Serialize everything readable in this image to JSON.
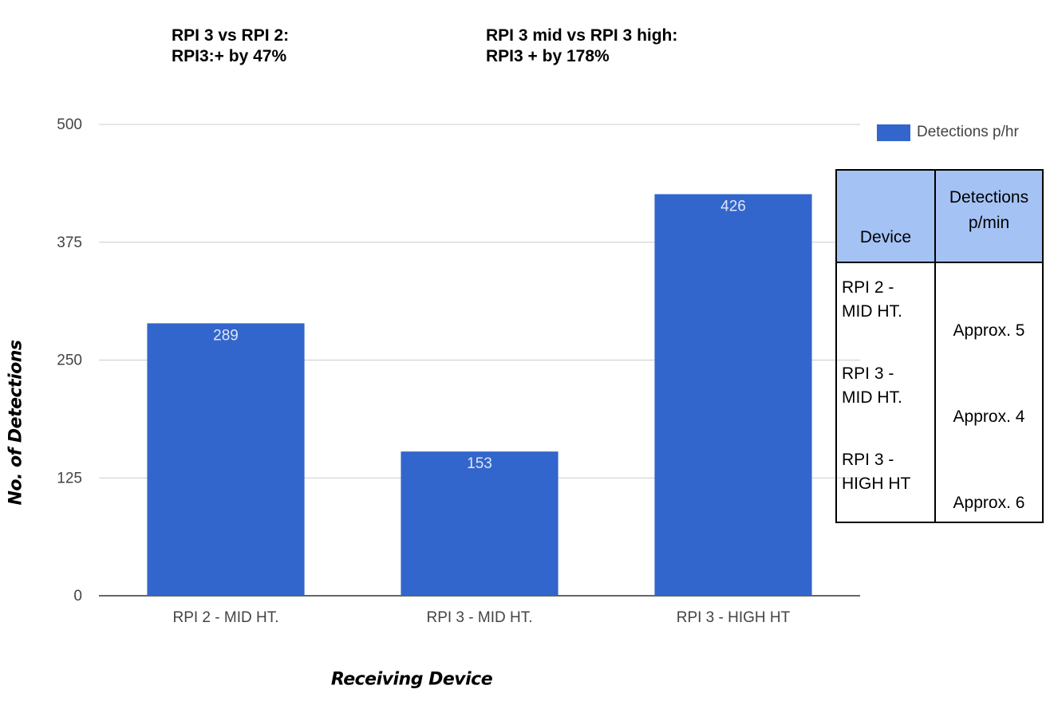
{
  "annotations": [
    {
      "line1": "RPI 3 vs RPI 2:",
      "line2": "RPI3:+ by 47%"
    },
    {
      "line1": "RPI 3 mid vs RPI 3 high:",
      "line2": "RPI3 + by 178%"
    }
  ],
  "chart_data": {
    "type": "bar",
    "categories": [
      "RPI 2 - MID HT.",
      "RPI 3 - MID HT.",
      "RPI 3 - HIGH HT"
    ],
    "series": [
      {
        "name": "Detections p/hr",
        "values": [
          289,
          153,
          426
        ],
        "color": "#3366cc"
      }
    ],
    "data_labels": [
      "289",
      "153",
      "426"
    ],
    "xlabel": "Receiving Device",
    "ylabel": "No. of Detections",
    "ylim": [
      0,
      500
    ],
    "yticks": [
      0,
      125,
      250,
      375,
      500
    ],
    "ytick_labels": [
      "0",
      "125",
      "250",
      "375",
      "500"
    ],
    "grid": true,
    "legend_position": "top-right"
  },
  "table": {
    "headers": [
      "Device",
      "Detections p/min"
    ],
    "rows": [
      {
        "device": "RPI 2 -\nMID HT.",
        "value": "Approx. 5"
      },
      {
        "device": "RPI 3 -\nMID HT.",
        "value": "Approx. 4"
      },
      {
        "device": "RPI 3 -\nHIGH HT",
        "value": "Approx. 6"
      }
    ],
    "header_color": "#a4c2f4"
  }
}
